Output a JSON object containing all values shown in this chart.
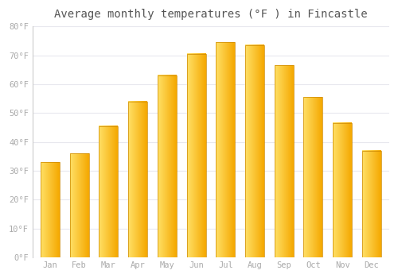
{
  "title": "Average monthly temperatures (°F ) in Fincastle",
  "months": [
    "Jan",
    "Feb",
    "Mar",
    "Apr",
    "May",
    "Jun",
    "Jul",
    "Aug",
    "Sep",
    "Oct",
    "Nov",
    "Dec"
  ],
  "values": [
    33,
    36,
    45.5,
    54,
    63,
    70.5,
    74.5,
    73.5,
    66.5,
    55.5,
    46.5,
    37
  ],
  "bar_color_left": "#FFE066",
  "bar_color_right": "#F5A800",
  "background_color": "#ffffff",
  "plot_bg_color": "#ffffff",
  "grid_color": "#e8e8ee",
  "ylim": [
    0,
    80
  ],
  "yticks": [
    0,
    10,
    20,
    30,
    40,
    50,
    60,
    70,
    80
  ],
  "ytick_labels": [
    "0°F",
    "10°F",
    "20°F",
    "30°F",
    "40°F",
    "50°F",
    "60°F",
    "70°F",
    "80°F"
  ],
  "tick_label_color": "#aaaaaa",
  "title_color": "#555555",
  "title_fontsize": 10,
  "font_family": "monospace",
  "bar_width": 0.65
}
